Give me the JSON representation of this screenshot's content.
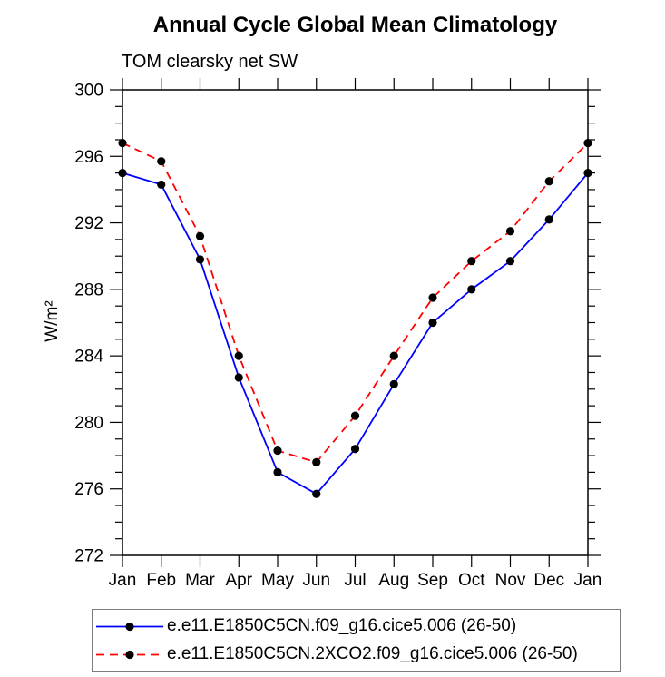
{
  "chart_data": {
    "type": "line",
    "title": "Annual Cycle Global Mean Climatology",
    "subtitle": "TOM clearsky net SW",
    "ylabel": "W/m²",
    "xlabel": "",
    "categories": [
      "Jan",
      "Feb",
      "Mar",
      "Apr",
      "May",
      "Jun",
      "Jul",
      "Aug",
      "Sep",
      "Oct",
      "Nov",
      "Dec",
      "Jan"
    ],
    "ylim": [
      272,
      300
    ],
    "ytick_major": 4,
    "ytick_minor": 1,
    "grid": false,
    "legend_position": "bottom-box",
    "marker": "filled-circle",
    "marker_color": "#000000",
    "axis_color": "#000000",
    "series": [
      {
        "name": "e.e11.E1850C5CN.f09_g16.cice5.006 (26-50)",
        "color": "#0000ff",
        "dash": "none",
        "values": [
          295.0,
          294.3,
          289.8,
          282.7,
          277.0,
          275.7,
          278.4,
          282.3,
          286.0,
          288.0,
          289.7,
          292.2,
          295.0
        ]
      },
      {
        "name": "e.e11.E1850C5CN.2XCO2.f09_g16.cice5.006 (26-50)",
        "color": "#ff0000",
        "dash": "9,6",
        "values": [
          296.8,
          295.7,
          291.2,
          284.0,
          278.3,
          277.6,
          280.4,
          284.0,
          287.5,
          289.7,
          291.5,
          294.5,
          296.8
        ]
      }
    ]
  }
}
